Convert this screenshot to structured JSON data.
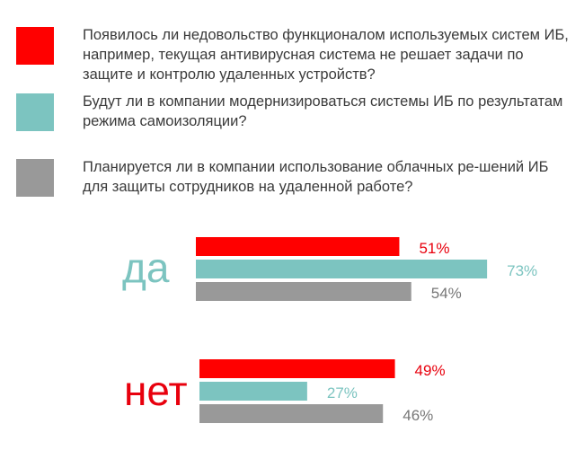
{
  "chart_data": {
    "type": "bar",
    "orientation": "horizontal",
    "categories": [
      "да",
      "нет"
    ],
    "series": [
      {
        "name": "Появилось ли недовольство функционалом используемых систем ИБ, например, текущая антивирусная система не решает задачи по защите и контролю удаленных устройств?",
        "color": "#ff0000",
        "values": [
          51,
          49
        ],
        "labels": [
          "51%",
          "49%"
        ]
      },
      {
        "name": "Будут ли в компании модернизироваться системы ИБ по результатам режима самоизоляции?",
        "color": "#7cc4c0",
        "values": [
          73,
          27
        ],
        "labels": [
          "73%",
          "27%"
        ]
      },
      {
        "name": "Планируется ли в компании использование облачных ре-шений ИБ для защиты сотрудников на удаленной работе?",
        "color": "#999999",
        "values": [
          54,
          46
        ],
        "labels": [
          "54%",
          "46%"
        ]
      }
    ],
    "category_colors": [
      "#7cc4c0",
      "#e8000d"
    ],
    "legend_position": "top",
    "grid": false
  }
}
